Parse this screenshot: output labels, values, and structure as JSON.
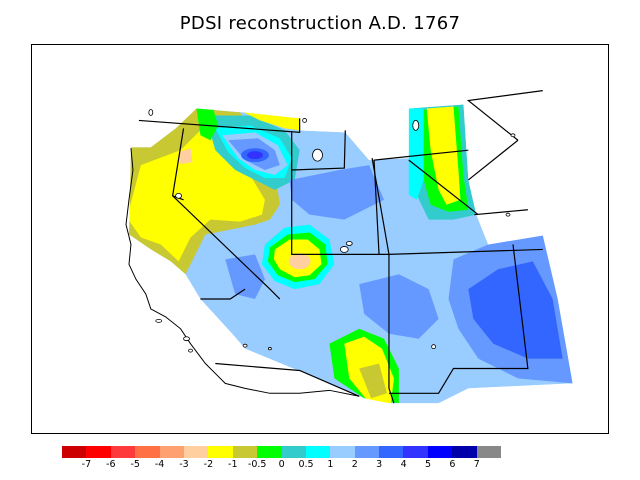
{
  "title": "PDSI reconstruction A.D. 1767",
  "colorbar": {
    "colors": [
      "#cc0000",
      "#ff0000",
      "#ff3a3a",
      "#ff7144",
      "#ffa070",
      "#ffcfa0",
      "#ffff00",
      "#c8c832",
      "#00ff00",
      "#33cccc",
      "#00ffff",
      "#99ccff",
      "#6699ff",
      "#3366ff",
      "#3333ff",
      "#0000ff",
      "#0000aa",
      "#888888"
    ],
    "labels": [
      "-7",
      "-6",
      "-5",
      "-4",
      "-3",
      "-2",
      "-1",
      "-0.5",
      "0",
      "0.5",
      "1",
      "2",
      "3",
      "4",
      "5",
      "6",
      "7"
    ]
  },
  "map": {
    "region": "Western United States",
    "legend_colors_used": {
      "wet_moderate": "#99ccff",
      "wet_high": "#6699ff",
      "wet_very_high": "#3366ff",
      "wettest": "#3333ff",
      "near_normal_wet": "#00ffff",
      "slight_wet": "#33cccc",
      "near_zero": "#00ff00",
      "dry_slight": "#c8c832",
      "dry": "#ffff00",
      "dry_moderate": "#ffcfa0"
    }
  }
}
